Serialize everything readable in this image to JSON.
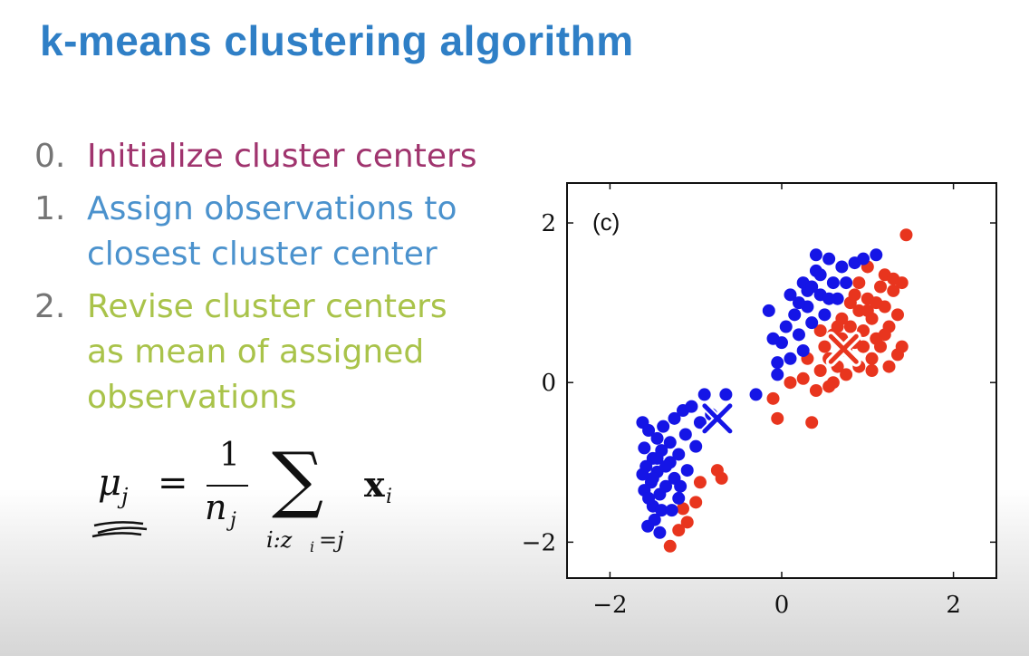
{
  "slide": {
    "title": "k-means clustering algorithm",
    "steps": [
      {
        "num": "0.",
        "text": "Initialize cluster centers",
        "color": "#a0346e"
      },
      {
        "num": "1.",
        "text": "Assign observations to closest cluster center",
        "color": "#4b92cd"
      },
      {
        "num": "2.",
        "text": "Revise cluster centers as mean of assigned observations",
        "color": "#a9c34a"
      }
    ],
    "formula": {
      "lhs": "μ",
      "lhs_sub": "j",
      "eq": "=",
      "num": "1",
      "den": "n",
      "den_sub": "j",
      "sum": "∑",
      "sum_lower": "i:z",
      "sum_lower_sub": "i",
      "sum_lower_rest": "=j",
      "term": "x",
      "term_sub": "i"
    }
  },
  "chart_data": {
    "type": "scatter",
    "panel_label": "(c)",
    "xlim": [
      -2.5,
      2.5
    ],
    "ylim": [
      -2.45,
      2.5
    ],
    "xticks": [
      -2,
      0,
      2
    ],
    "yticks": [
      -2,
      0,
      2
    ],
    "xtick_labels": [
      "−2",
      "0",
      "2"
    ],
    "ytick_labels": [
      "−2",
      "0",
      "2"
    ],
    "grid": false,
    "series": [
      {
        "color": "#1515e6",
        "points": [
          [
            -1.62,
            -0.5
          ],
          [
            -1.55,
            -0.6
          ],
          [
            -1.6,
            -0.82
          ],
          [
            -1.5,
            -0.95
          ],
          [
            -1.58,
            -1.05
          ],
          [
            -1.45,
            -1.12
          ],
          [
            -1.52,
            -1.25
          ],
          [
            -1.6,
            -1.35
          ],
          [
            -1.42,
            -1.4
          ],
          [
            -1.5,
            -1.55
          ],
          [
            -1.4,
            -1.6
          ],
          [
            -1.48,
            -1.72
          ],
          [
            -1.56,
            -1.8
          ],
          [
            -1.42,
            -1.88
          ],
          [
            -1.35,
            -1.3
          ],
          [
            -1.3,
            -1.0
          ],
          [
            -1.25,
            -1.2
          ],
          [
            -1.2,
            -1.45
          ],
          [
            -1.3,
            -0.75
          ],
          [
            -1.45,
            -0.7
          ],
          [
            -1.38,
            -0.55
          ],
          [
            -1.25,
            -0.45
          ],
          [
            -1.15,
            -0.35
          ],
          [
            -1.2,
            -0.9
          ],
          [
            -1.1,
            -1.1
          ],
          [
            -1.35,
            -1.05
          ],
          [
            -1.5,
            -1.2
          ],
          [
            -1.62,
            -1.15
          ],
          [
            -1.4,
            -0.85
          ],
          [
            -1.28,
            -1.6
          ],
          [
            -1.18,
            -1.3
          ],
          [
            -1.12,
            -0.65
          ],
          [
            -1.05,
            -0.3
          ],
          [
            -0.95,
            -0.5
          ],
          [
            -0.9,
            -0.15
          ],
          [
            -0.82,
            -0.4
          ],
          [
            -0.65,
            -0.15
          ],
          [
            -1.0,
            -0.8
          ],
          [
            -1.45,
            -0.95
          ],
          [
            -1.55,
            -1.45
          ],
          [
            -0.3,
            -0.15
          ],
          [
            -0.15,
            0.9
          ],
          [
            -0.05,
            0.25
          ],
          [
            0.05,
            0.7
          ],
          [
            0.0,
            0.5
          ],
          [
            0.1,
            1.1
          ],
          [
            0.15,
            0.85
          ],
          [
            0.2,
            0.6
          ],
          [
            0.25,
            1.25
          ],
          [
            0.3,
            0.95
          ],
          [
            0.35,
            0.75
          ],
          [
            0.4,
            1.4
          ],
          [
            0.45,
            1.1
          ],
          [
            0.5,
            0.85
          ],
          [
            0.55,
            1.55
          ],
          [
            0.6,
            1.25
          ],
          [
            0.65,
            1.05
          ],
          [
            0.7,
            1.45
          ],
          [
            0.75,
            1.25
          ],
          [
            0.85,
            1.5
          ],
          [
            0.95,
            1.55
          ],
          [
            1.1,
            1.6
          ],
          [
            0.3,
            1.15
          ],
          [
            0.45,
            1.35
          ],
          [
            0.2,
            1.0
          ],
          [
            0.35,
            1.2
          ],
          [
            -0.05,
            0.1
          ],
          [
            0.25,
            0.4
          ],
          [
            0.1,
            0.3
          ],
          [
            0.4,
            1.6
          ],
          [
            0.55,
            1.05
          ],
          [
            -0.1,
            0.55
          ]
        ]
      },
      {
        "color": "#e8351e",
        "points": [
          [
            -1.3,
            -2.05
          ],
          [
            -1.2,
            -1.85
          ],
          [
            -1.1,
            -1.75
          ],
          [
            -1.0,
            -1.5
          ],
          [
            -0.95,
            -1.25
          ],
          [
            -0.75,
            -1.1
          ],
          [
            -0.7,
            -1.2
          ],
          [
            -1.15,
            -1.58
          ],
          [
            -0.1,
            -0.2
          ],
          [
            -0.05,
            -0.45
          ],
          [
            0.35,
            -0.5
          ],
          [
            0.1,
            0.0
          ],
          [
            0.25,
            0.05
          ],
          [
            0.4,
            -0.1
          ],
          [
            0.45,
            0.15
          ],
          [
            0.55,
            0.3
          ],
          [
            0.6,
            0.0
          ],
          [
            0.65,
            0.2
          ],
          [
            0.7,
            0.55
          ],
          [
            0.75,
            0.4
          ],
          [
            0.8,
            0.7
          ],
          [
            0.85,
            0.5
          ],
          [
            0.9,
            0.9
          ],
          [
            0.95,
            0.65
          ],
          [
            1.0,
            1.05
          ],
          [
            1.05,
            0.8
          ],
          [
            1.1,
            0.55
          ],
          [
            1.15,
            1.2
          ],
          [
            1.2,
            0.95
          ],
          [
            1.25,
            0.7
          ],
          [
            1.3,
            1.15
          ],
          [
            1.35,
            0.85
          ],
          [
            1.4,
            0.45
          ],
          [
            1.45,
            1.85
          ],
          [
            1.2,
            1.35
          ],
          [
            1.0,
            1.45
          ],
          [
            0.9,
            1.25
          ],
          [
            0.8,
            1.0
          ],
          [
            0.7,
            0.8
          ],
          [
            0.6,
            0.6
          ],
          [
            0.5,
            0.45
          ],
          [
            0.9,
            0.2
          ],
          [
            1.05,
            0.3
          ],
          [
            1.25,
            0.2
          ],
          [
            1.35,
            0.35
          ],
          [
            1.15,
            0.45
          ],
          [
            0.95,
            0.45
          ],
          [
            0.75,
            0.1
          ],
          [
            0.55,
            -0.05
          ],
          [
            0.65,
            0.7
          ],
          [
            1.0,
            0.9
          ],
          [
            1.1,
            1.0
          ],
          [
            1.3,
            1.3
          ],
          [
            1.4,
            1.25
          ],
          [
            1.2,
            0.6
          ],
          [
            0.85,
            1.1
          ],
          [
            0.45,
            0.65
          ],
          [
            0.3,
            0.3
          ],
          [
            1.05,
            0.15
          ]
        ]
      }
    ],
    "centers": [
      {
        "x": -0.75,
        "y": -0.45,
        "color": "#1515e6"
      },
      {
        "x": 0.72,
        "y": 0.42,
        "color": "#e8351e"
      }
    ]
  }
}
